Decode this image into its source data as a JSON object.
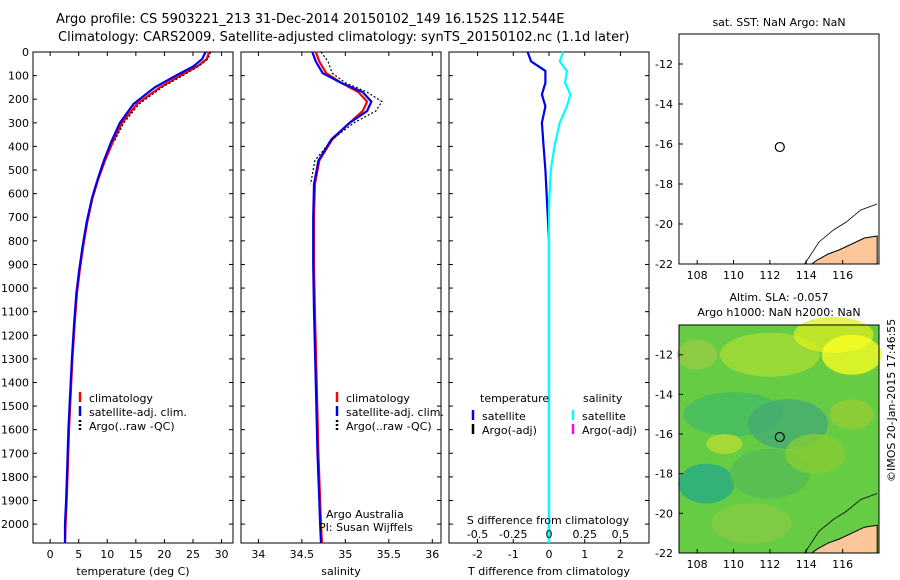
{
  "header": {
    "line1": "Argo profile: CS 5903221_213 31-Dec-2014 20150102_149 16.152S 112.544E",
    "line2": "Climatology: CARS2009. Satellite-adjusted climatology: synTS_20150102.nc (1.1d later)"
  },
  "stamp": "©IMOS 20-Jan-2015 17:46:55",
  "colors": {
    "climatology": "#ff0000",
    "satellite": "#0000ee",
    "argo": "#000000",
    "salinity_satellite": "#00ffff",
    "salinity_argo": "#ff00ff",
    "land": "#fbc79a"
  },
  "panels": {
    "temperature": {
      "xlabel": "temperature (deg C)",
      "xticks": [
        0,
        5,
        10,
        15,
        20,
        25,
        30
      ],
      "xlim": [
        -3,
        32
      ],
      "legend": [
        "climatology",
        "satellite-adj. clim.",
        "Argo(..raw -QC)"
      ]
    },
    "salinity": {
      "xlabel": "salinity",
      "xticks": [
        34,
        34.5,
        35,
        35.5,
        36
      ],
      "xticklabels": [
        "34",
        "34.5",
        "35",
        "35.5",
        "36"
      ],
      "xlim": [
        33.8,
        36.1
      ],
      "legend": [
        "climatology",
        "satellite-adj. clim.",
        "Argo(..raw -QC)"
      ],
      "note1": "Argo Australia",
      "note2": "PI: Susan Wijffels"
    },
    "difference": {
      "xlabel": "T difference from climatology",
      "top_axis_label": "S difference from climatology",
      "xticks": [
        -2,
        -1,
        0,
        1,
        2
      ],
      "top_ticks": [
        -0.5,
        -0.25,
        0,
        0.25,
        0.5
      ],
      "top_ticklabels": [
        "-0.5",
        "-0.25",
        "0",
        "0.25",
        "0.5"
      ],
      "xlim": [
        -2.8,
        2.8
      ],
      "legend_temp_header": "temperature",
      "legend_sal_header": "salinity",
      "legend_temp": [
        "satellite",
        "Argo(-adj)"
      ],
      "legend_sal": [
        "satellite",
        "Argo(-adj)"
      ]
    },
    "sst_map": {
      "title": "sat. SST: NaN Argo: NaN",
      "xticks": [
        108,
        110,
        112,
        114,
        116
      ],
      "yticks": [
        -12,
        -14,
        -16,
        -18,
        -20,
        -22
      ]
    },
    "sla_map": {
      "title1": "Altim. SLA: -0.057",
      "title2": "Argo h1000: NaN h2000: NaN",
      "xticks": [
        108,
        110,
        112,
        114,
        116
      ],
      "yticks": [
        -12,
        -14,
        -16,
        -18,
        -20,
        -22
      ]
    }
  },
  "depth_ticks": [
    0,
    100,
    200,
    300,
    400,
    500,
    600,
    700,
    800,
    900,
    1000,
    1100,
    1200,
    1300,
    1400,
    1500,
    1600,
    1700,
    1800,
    1900,
    2000
  ],
  "chart_data": [
    {
      "type": "line",
      "xlabel": "temperature (deg C)",
      "ylim": [
        0,
        2080
      ],
      "series": [
        {
          "name": "climatology",
          "x": [
            27.8,
            27.4,
            25.8,
            22.8,
            19.2,
            15.2,
            12.6,
            11.0,
            9.6,
            8.4,
            7.4,
            6.5,
            5.8,
            5.2,
            4.7,
            4.3,
            3.9,
            3.6,
            3.3,
            3.1,
            2.9,
            2.7,
            2.6
          ],
          "depth": [
            0,
            30,
            60,
            100,
            150,
            220,
            300,
            380,
            460,
            540,
            620,
            720,
            820,
            920,
            1020,
            1150,
            1300,
            1450,
            1600,
            1750,
            1900,
            2000,
            2080
          ]
        },
        {
          "name": "satellite-adj. clim.",
          "x": [
            27.2,
            26.6,
            25.1,
            22.0,
            18.3,
            14.6,
            12.2,
            10.7,
            9.4,
            8.3,
            7.3,
            6.4,
            5.7,
            5.1,
            4.6,
            4.2,
            3.8,
            3.5,
            3.2,
            3.0,
            2.8,
            2.6,
            2.6
          ],
          "depth": [
            0,
            30,
            60,
            100,
            150,
            220,
            300,
            380,
            460,
            540,
            620,
            720,
            820,
            920,
            1020,
            1150,
            1300,
            1450,
            1600,
            1750,
            1900,
            2000,
            2080
          ]
        },
        {
          "name": "Argo(..raw -QC)",
          "x": [
            28.1,
            27.6,
            26.0,
            23.2,
            19.6,
            15.6,
            12.9,
            11.2
          ],
          "depth": [
            0,
            30,
            60,
            100,
            150,
            220,
            300,
            380
          ]
        }
      ]
    },
    {
      "type": "line",
      "xlabel": "salinity",
      "ylim": [
        0,
        2080
      ],
      "series": [
        {
          "name": "climatology",
          "x": [
            34.66,
            34.7,
            34.78,
            34.95,
            35.15,
            35.25,
            35.2,
            35.05,
            34.85,
            34.7,
            34.65,
            34.64,
            34.64,
            34.65,
            34.67,
            34.69,
            34.71,
            34.72,
            34.73
          ],
          "depth": [
            0,
            40,
            90,
            130,
            170,
            210,
            250,
            300,
            370,
            460,
            560,
            700,
            900,
            1100,
            1400,
            1700,
            1900,
            2000,
            2080
          ]
        },
        {
          "name": "satellite-adj. clim.",
          "x": [
            34.62,
            34.66,
            34.74,
            34.95,
            35.2,
            35.3,
            35.25,
            35.05,
            34.84,
            34.69,
            34.64,
            34.63,
            34.63,
            34.64,
            34.66,
            34.68,
            34.7,
            34.71,
            34.72
          ],
          "depth": [
            0,
            40,
            90,
            130,
            170,
            210,
            250,
            300,
            370,
            460,
            560,
            700,
            900,
            1100,
            1400,
            1700,
            1900,
            2000,
            2080
          ]
        },
        {
          "name": "Argo(..raw -QC)",
          "x": [
            34.72,
            34.8,
            34.85,
            35.0,
            35.25,
            35.42,
            35.35,
            35.1,
            34.85,
            34.65,
            34.6
          ],
          "depth": [
            0,
            40,
            90,
            130,
            170,
            210,
            250,
            300,
            370,
            460,
            560
          ]
        }
      ]
    },
    {
      "type": "line",
      "xlabel": "T difference from climatology",
      "ylim": [
        0,
        2080
      ],
      "series": [
        {
          "name": "satellite",
          "x": [
            -0.6,
            -0.5,
            -0.1,
            -0.1,
            -0.2,
            -0.1,
            -0.2,
            -0.15,
            -0.1,
            -0.05,
            0,
            0,
            0,
            0,
            0
          ],
          "depth": [
            0,
            40,
            80,
            130,
            180,
            230,
            300,
            400,
            500,
            650,
            800,
            1000,
            1400,
            1800,
            2080
          ]
        },
        {
          "name": "salinity satellite",
          "x": [
            0.4,
            0.3,
            0.5,
            0.45,
            0.6,
            0.5,
            0.3,
            0.15,
            0.05,
            0,
            0,
            0,
            0,
            0
          ],
          "depth": [
            0,
            40,
            80,
            130,
            180,
            230,
            300,
            400,
            500,
            650,
            800,
            1200,
            1700,
            2080
          ]
        }
      ]
    }
  ]
}
